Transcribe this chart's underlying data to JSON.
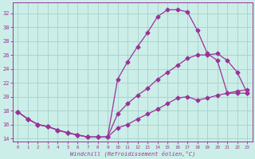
{
  "xlabel": "Windchill (Refroidissement éolien,°C)",
  "background_color": "#cceee8",
  "grid_color": "#aad4ce",
  "line_color": "#993399",
  "xlim": [
    -0.5,
    23.5
  ],
  "ylim": [
    13.5,
    33.5
  ],
  "yticks": [
    14,
    16,
    18,
    20,
    22,
    24,
    26,
    28,
    30,
    32
  ],
  "xticks": [
    0,
    1,
    2,
    3,
    4,
    5,
    6,
    7,
    8,
    9,
    10,
    11,
    12,
    13,
    14,
    15,
    16,
    17,
    18,
    19,
    20,
    21,
    22,
    23
  ],
  "series1_x": [
    0,
    1,
    2,
    3,
    4,
    5,
    6,
    7,
    8,
    9,
    10,
    11,
    12,
    13,
    14,
    15,
    16,
    17,
    18,
    19,
    20,
    21,
    22,
    23
  ],
  "series1_y": [
    17.8,
    16.8,
    16.0,
    15.7,
    15.2,
    14.8,
    14.5,
    14.2,
    14.2,
    14.2,
    22.5,
    25.0,
    27.2,
    29.2,
    31.5,
    32.5,
    32.5,
    32.2,
    29.5,
    26.2,
    25.2,
    20.5,
    20.5,
    20.5
  ],
  "series2_x": [
    0,
    1,
    2,
    3,
    4,
    5,
    6,
    7,
    8,
    9,
    10,
    11,
    12,
    13,
    14,
    15,
    16,
    17,
    18,
    19,
    20,
    21,
    22,
    23
  ],
  "series2_y": [
    17.8,
    16.8,
    16.0,
    15.7,
    15.2,
    14.8,
    14.5,
    14.2,
    14.2,
    14.2,
    17.5,
    19.0,
    20.2,
    21.2,
    22.5,
    23.5,
    24.5,
    25.5,
    26.0,
    26.0,
    26.2,
    25.2,
    23.5,
    20.5
  ],
  "series3_x": [
    0,
    1,
    2,
    3,
    4,
    5,
    6,
    7,
    8,
    9,
    10,
    11,
    12,
    13,
    14,
    15,
    16,
    17,
    18,
    19,
    20,
    21,
    22,
    23
  ],
  "series3_y": [
    17.8,
    16.8,
    16.0,
    15.7,
    15.2,
    14.8,
    14.5,
    14.2,
    14.2,
    14.2,
    15.5,
    16.0,
    16.8,
    17.5,
    18.2,
    19.0,
    19.8,
    20.0,
    19.5,
    19.8,
    20.2,
    20.5,
    20.8,
    21.0
  ],
  "marker": "D",
  "markersize": 2.5,
  "linewidth": 0.9
}
